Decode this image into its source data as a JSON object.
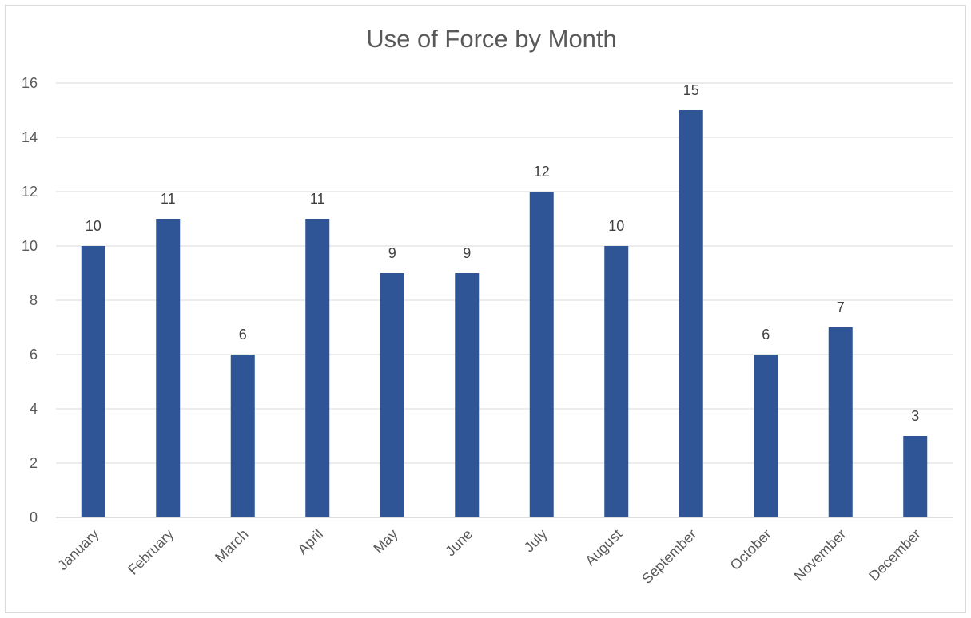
{
  "chart_data": {
    "type": "bar",
    "title": "Use of Force by Month",
    "categories": [
      "January",
      "February",
      "March",
      "April",
      "May",
      "June",
      "July",
      "August",
      "September",
      "October",
      "November",
      "December"
    ],
    "values": [
      10,
      11,
      6,
      11,
      9,
      9,
      12,
      10,
      15,
      6,
      7,
      3
    ],
    "ylim": [
      0,
      16
    ],
    "yticks": [
      0,
      2,
      4,
      6,
      8,
      10,
      12,
      14,
      16
    ],
    "grid": true,
    "legend": "none",
    "data_labels": true,
    "bar_color": "#2F5597"
  }
}
